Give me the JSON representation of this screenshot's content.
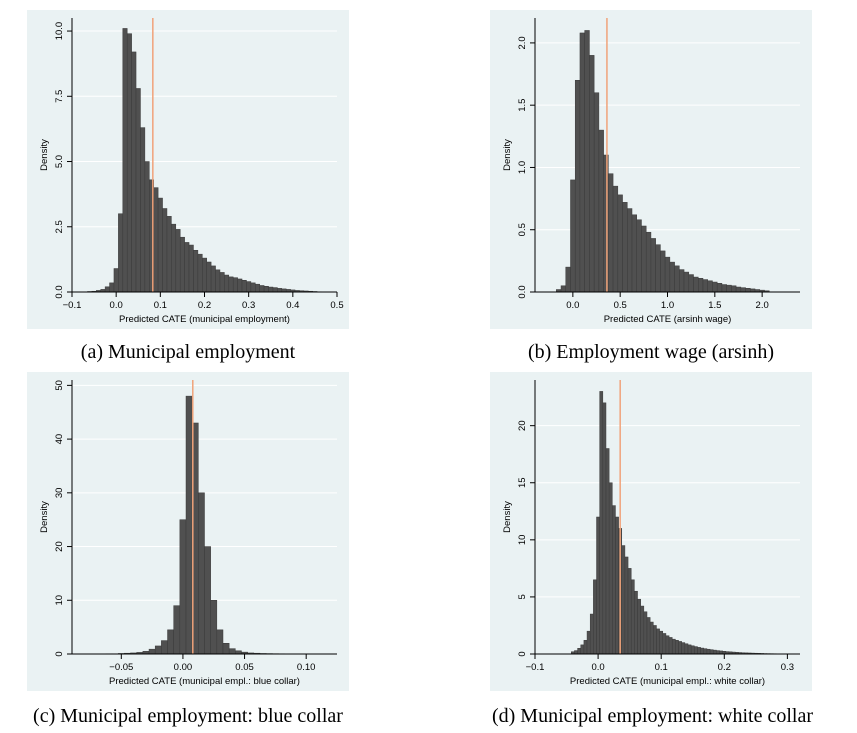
{
  "chart_data": [
    {
      "type": "bar",
      "caption": "(a) Municipal employment",
      "xlabel": "Predicted CATE (municipal employment)",
      "ylabel": "Density",
      "xlim": [
        -0.1,
        0.5
      ],
      "ylim": [
        0,
        10.5
      ],
      "xticks": [
        -0.1,
        0.0,
        0.1,
        0.2,
        0.3,
        0.4,
        0.5
      ],
      "xtick_labels": [
        "−0.1",
        "0.0",
        "0.1",
        "0.2",
        "0.3",
        "0.4",
        "0.5"
      ],
      "yticks": [
        0,
        2.5,
        5,
        7.5,
        10
      ],
      "ytick_labels": [
        "0.0",
        "2.5",
        "5.0",
        "7.5",
        "10.0"
      ],
      "vline": 0.083,
      "bin_width": 0.01,
      "x": [
        -0.06,
        -0.05,
        -0.04,
        -0.03,
        -0.02,
        -0.01,
        0.0,
        0.01,
        0.02,
        0.03,
        0.04,
        0.05,
        0.06,
        0.07,
        0.08,
        0.09,
        0.1,
        0.11,
        0.12,
        0.13,
        0.14,
        0.15,
        0.16,
        0.17,
        0.18,
        0.19,
        0.2,
        0.21,
        0.22,
        0.23,
        0.24,
        0.25,
        0.26,
        0.27,
        0.28,
        0.29,
        0.3,
        0.31,
        0.32,
        0.33,
        0.34,
        0.35,
        0.36,
        0.37,
        0.38,
        0.39,
        0.4,
        0.41,
        0.42,
        0.43,
        0.44,
        0.45,
        0.46
      ],
      "values": [
        0.02,
        0.03,
        0.06,
        0.1,
        0.2,
        0.35,
        0.9,
        3.0,
        10.1,
        9.9,
        9.2,
        7.8,
        6.3,
        5.0,
        4.3,
        4.0,
        3.6,
        3.2,
        2.9,
        2.6,
        2.4,
        2.1,
        1.9,
        1.8,
        1.6,
        1.45,
        1.3,
        1.15,
        1.0,
        0.85,
        0.75,
        0.65,
        0.58,
        0.55,
        0.5,
        0.45,
        0.4,
        0.35,
        0.3,
        0.25,
        0.22,
        0.19,
        0.17,
        0.14,
        0.12,
        0.1,
        0.08,
        0.06,
        0.05,
        0.04,
        0.03,
        0.02,
        0.01
      ]
    },
    {
      "type": "bar",
      "caption": "(b) Employment wage (arsinh)",
      "xlabel": "Predicted CATE (arsinh wage)",
      "ylabel": "Density",
      "xlim": [
        -0.4,
        2.4
      ],
      "ylim": [
        0,
        2.2
      ],
      "xticks": [
        0.0,
        0.5,
        1.0,
        1.5,
        2.0
      ],
      "xtick_labels": [
        "0.0",
        "0.5",
        "1.0",
        "1.5",
        "2.0"
      ],
      "yticks": [
        0,
        0.5,
        1.0,
        1.5,
        2.0
      ],
      "ytick_labels": [
        "0.0",
        "0.5",
        "1.0",
        "1.5",
        "2.0"
      ],
      "vline": 0.36,
      "bin_width": 0.05,
      "x": [
        -0.15,
        -0.1,
        -0.05,
        0.0,
        0.05,
        0.1,
        0.15,
        0.2,
        0.25,
        0.3,
        0.35,
        0.4,
        0.45,
        0.5,
        0.55,
        0.6,
        0.65,
        0.7,
        0.75,
        0.8,
        0.85,
        0.9,
        0.95,
        1.0,
        1.05,
        1.1,
        1.15,
        1.2,
        1.25,
        1.3,
        1.35,
        1.4,
        1.45,
        1.5,
        1.55,
        1.6,
        1.65,
        1.7,
        1.75,
        1.8,
        1.85,
        1.9,
        1.95,
        2.0,
        2.05
      ],
      "values": [
        0.02,
        0.05,
        0.2,
        0.9,
        1.7,
        2.08,
        2.1,
        1.9,
        1.6,
        1.3,
        1.1,
        0.95,
        0.85,
        0.78,
        0.72,
        0.67,
        0.62,
        0.58,
        0.53,
        0.48,
        0.43,
        0.38,
        0.33,
        0.28,
        0.24,
        0.21,
        0.18,
        0.16,
        0.14,
        0.12,
        0.11,
        0.1,
        0.09,
        0.08,
        0.07,
        0.06,
        0.055,
        0.05,
        0.04,
        0.035,
        0.03,
        0.025,
        0.02,
        0.015,
        0.01
      ]
    },
    {
      "type": "bar",
      "caption": "(c) Municipal employment: blue collar",
      "xlabel": "Predicted CATE (municipal empl.: blue collar)",
      "ylabel": "Density",
      "xlim": [
        -0.09,
        0.125
      ],
      "ylim": [
        0,
        51
      ],
      "xticks": [
        -0.05,
        0.0,
        0.05,
        0.1
      ],
      "xtick_labels": [
        "−0.05",
        "0.00",
        "0.05",
        "0.10"
      ],
      "yticks": [
        0,
        10,
        20,
        30,
        40,
        50
      ],
      "ytick_labels": [
        "0",
        "10",
        "20",
        "30",
        "40",
        "50"
      ],
      "vline": 0.008,
      "bin_width": 0.005,
      "x": [
        -0.06,
        -0.055,
        -0.05,
        -0.045,
        -0.04,
        -0.035,
        -0.03,
        -0.025,
        -0.02,
        -0.015,
        -0.01,
        -0.005,
        0.0,
        0.005,
        0.01,
        0.015,
        0.02,
        0.025,
        0.03,
        0.035,
        0.04,
        0.045,
        0.05,
        0.055,
        0.06,
        0.065,
        0.07,
        0.075,
        0.08,
        0.085,
        0.09,
        0.095
      ],
      "values": [
        0.05,
        0.05,
        0.1,
        0.15,
        0.2,
        0.3,
        0.5,
        0.9,
        1.5,
        2.5,
        4.5,
        9.0,
        25.0,
        48.0,
        43.0,
        30.0,
        20.0,
        10.0,
        4.5,
        2.0,
        1.0,
        0.6,
        0.35,
        0.2,
        0.15,
        0.1,
        0.08,
        0.06,
        0.05,
        0.04,
        0.03,
        0.02
      ]
    },
    {
      "type": "bar",
      "caption": "(d) Municipal employment: white collar",
      "xlabel": "Predicted CATE (municipal empl.: white collar)",
      "ylabel": "Density",
      "xlim": [
        -0.1,
        0.32
      ],
      "ylim": [
        0,
        24
      ],
      "xticks": [
        -0.1,
        0.0,
        0.1,
        0.2,
        0.3
      ],
      "xtick_labels": [
        "−0.1",
        "0.0",
        "0.1",
        "0.2",
        "0.3"
      ],
      "yticks": [
        0,
        5,
        10,
        15,
        20
      ],
      "ytick_labels": [
        "0",
        "5",
        "10",
        "15",
        "20"
      ],
      "vline": 0.035,
      "bin_width": 0.005,
      "x": [
        -0.04,
        -0.035,
        -0.03,
        -0.025,
        -0.02,
        -0.015,
        -0.01,
        -0.005,
        0.0,
        0.005,
        0.01,
        0.015,
        0.02,
        0.025,
        0.03,
        0.035,
        0.04,
        0.045,
        0.05,
        0.055,
        0.06,
        0.065,
        0.07,
        0.075,
        0.08,
        0.085,
        0.09,
        0.095,
        0.1,
        0.105,
        0.11,
        0.115,
        0.12,
        0.125,
        0.13,
        0.135,
        0.14,
        0.145,
        0.15,
        0.155,
        0.16,
        0.165,
        0.17,
        0.175,
        0.18,
        0.185,
        0.19,
        0.195,
        0.2,
        0.205,
        0.21,
        0.215,
        0.22,
        0.225,
        0.23,
        0.235,
        0.24,
        0.245,
        0.25,
        0.255,
        0.26,
        0.265,
        0.27,
        0.275,
        0.28,
        0.285,
        0.29
      ],
      "values": [
        0.2,
        0.3,
        0.5,
        0.8,
        1.2,
        2.0,
        3.5,
        6.5,
        12.0,
        23.0,
        22.0,
        18.0,
        15.0,
        13.0,
        12.0,
        11.0,
        9.5,
        8.5,
        7.5,
        6.5,
        5.5,
        4.8,
        4.2,
        3.7,
        3.2,
        2.8,
        2.5,
        2.2,
        2.0,
        1.8,
        1.6,
        1.45,
        1.3,
        1.2,
        1.1,
        1.0,
        0.9,
        0.8,
        0.72,
        0.65,
        0.58,
        0.52,
        0.47,
        0.42,
        0.38,
        0.34,
        0.3,
        0.27,
        0.24,
        0.21,
        0.19,
        0.17,
        0.15,
        0.13,
        0.11,
        0.1,
        0.09,
        0.08,
        0.07,
        0.06,
        0.05,
        0.04,
        0.035,
        0.03,
        0.025,
        0.02,
        0.015
      ]
    }
  ],
  "colors": {
    "panel_bg": "#eaf2f3",
    "bar_fill": "#505050",
    "bar_edge": "#3a3a3a",
    "vline": "#f0a37a",
    "grid": "#ffffff",
    "axis": "#000000"
  }
}
